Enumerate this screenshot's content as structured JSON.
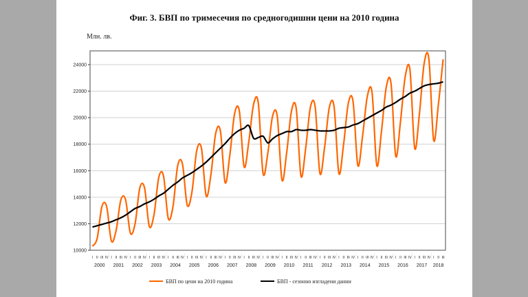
{
  "chart_data": {
    "type": "line",
    "title": "Фиг. 3. БВП по тримесечия по средногодишни цени на 2010 година",
    "ylabel": "Млн. лв.",
    "xlabel": "",
    "ylim": [
      10000,
      24000
    ],
    "yticks": [
      10000,
      12000,
      14000,
      16000,
      18000,
      20000,
      22000,
      24000
    ],
    "grid": true,
    "legend_position": "bottom",
    "years": [
      "2000",
      "2001",
      "2002",
      "2003",
      "2004",
      "2005",
      "2006",
      "2007",
      "2008",
      "2009",
      "2010",
      "2011",
      "2012",
      "2013",
      "2014",
      "2015",
      "2016",
      "2017",
      "2018"
    ],
    "quarter_labels": [
      "I",
      "II",
      "III",
      "IV"
    ],
    "series": [
      {
        "name": "БВП по цени на 2010 година",
        "color": "#ff6600",
        "values": [
          10300,
          10900,
          13300,
          13300,
          10700,
          11500,
          13800,
          13800,
          11300,
          12000,
          14700,
          14700,
          11800,
          12700,
          15500,
          15600,
          12400,
          13300,
          16400,
          16500,
          13400,
          14400,
          17500,
          17700,
          14100,
          15700,
          18800,
          19000,
          15100,
          17200,
          20300,
          20500,
          16300,
          18200,
          21000,
          21100,
          15800,
          17300,
          20100,
          20100,
          15300,
          17400,
          20500,
          20700,
          15600,
          17700,
          20800,
          20800,
          15800,
          17800,
          20800,
          20800,
          15800,
          18000,
          21100,
          21200,
          16400,
          18600,
          21600,
          21900,
          16400,
          19000,
          22300,
          22600,
          17100,
          19700,
          23100,
          23600,
          17700,
          20300,
          24100,
          24400,
          18300,
          21000,
          24400
        ]
      },
      {
        "name": "БВП - сезонно изгладени данни",
        "color": "#000000",
        "values": [
          11750,
          11850,
          11950,
          12050,
          12150,
          12300,
          12450,
          12650,
          12900,
          13150,
          13300,
          13500,
          13650,
          13850,
          14100,
          14300,
          14600,
          14900,
          15150,
          15450,
          15650,
          15850,
          16100,
          16350,
          16650,
          17000,
          17350,
          17700,
          18050,
          18450,
          18800,
          19050,
          19200,
          19400,
          18450,
          18500,
          18600,
          18100,
          18400,
          18650,
          18800,
          18950,
          18950,
          19100,
          19050,
          19050,
          19100,
          19050,
          19000,
          19000,
          19000,
          19050,
          19200,
          19250,
          19300,
          19450,
          19550,
          19750,
          19950,
          20150,
          20350,
          20550,
          20800,
          20950,
          21150,
          21400,
          21600,
          21850,
          22000,
          22200,
          22400,
          22500,
          22550,
          22600,
          22700
        ]
      }
    ]
  }
}
